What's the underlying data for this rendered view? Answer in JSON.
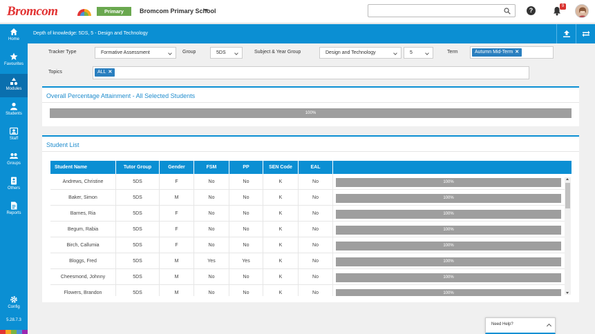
{
  "app": {
    "logo_text": "Bromcom",
    "edition_badge": "Primary",
    "school_name": "Bromcom Primary School",
    "notification_count": "9",
    "version": "5.28.7.3"
  },
  "colors": {
    "brand_blue": "#0b8fd3",
    "sidebar_active": "#0a6fae",
    "badge_green": "#6aa84f",
    "bar_gray": "#9e9e9e"
  },
  "sidebar": {
    "items": [
      {
        "label": "Home",
        "icon": "home-icon"
      },
      {
        "label": "Favourites",
        "icon": "star-icon"
      },
      {
        "label": "Modules",
        "icon": "modules-icon"
      },
      {
        "label": "Students",
        "icon": "student-icon"
      },
      {
        "label": "Staff",
        "icon": "staff-icon"
      },
      {
        "label": "Groups",
        "icon": "groups-icon"
      },
      {
        "label": "Others",
        "icon": "others-icon"
      },
      {
        "label": "Reports",
        "icon": "reports-icon"
      }
    ],
    "config_label": "Config"
  },
  "header": {
    "title": "Depth of knowledge: 5DS, 5 - Design and Technology"
  },
  "filters": {
    "tracker_type_label": "Tracker Type",
    "tracker_type_value": "Formative Assessment",
    "group_label": "Group",
    "group_value": "5DS",
    "subject_year_label": "Subject & Year Group",
    "subject_value": "Design and Technology",
    "year_value": "5",
    "term_label": "Term",
    "term_tag": "Autumn Mid-Term",
    "topics_label": "Topics",
    "topics_tag": "ALL"
  },
  "overall": {
    "title": "Overall Percentage Attainment - All Selected Students",
    "percent": 100,
    "percent_label": "100%"
  },
  "student_list": {
    "title": "Student List",
    "columns": [
      "Student Name",
      "Tutor Group",
      "Gender",
      "FSM",
      "PP",
      "SEN Code",
      "EAL"
    ],
    "rows": [
      {
        "name": "Andrews, Christine",
        "tutor": "5DS",
        "gender": "F",
        "fsm": "No",
        "pp": "No",
        "sen": "K",
        "eal": "No",
        "pct": "100%"
      },
      {
        "name": "Baker, Simon",
        "tutor": "5DS",
        "gender": "M",
        "fsm": "No",
        "pp": "No",
        "sen": "K",
        "eal": "No",
        "pct": "100%"
      },
      {
        "name": "Barnes, Ria",
        "tutor": "5DS",
        "gender": "F",
        "fsm": "No",
        "pp": "No",
        "sen": "K",
        "eal": "No",
        "pct": "100%"
      },
      {
        "name": "Begum, Rabia",
        "tutor": "5DS",
        "gender": "F",
        "fsm": "No",
        "pp": "No",
        "sen": "K",
        "eal": "No",
        "pct": "100%"
      },
      {
        "name": "Birch, Callumia",
        "tutor": "5DS",
        "gender": "F",
        "fsm": "No",
        "pp": "No",
        "sen": "K",
        "eal": "No",
        "pct": "100%"
      },
      {
        "name": "Bloggs, Fred",
        "tutor": "5DS",
        "gender": "M",
        "fsm": "Yes",
        "pp": "Yes",
        "sen": "K",
        "eal": "No",
        "pct": "100%"
      },
      {
        "name": "Cheesmond, Johnny",
        "tutor": "5DS",
        "gender": "M",
        "fsm": "No",
        "pp": "No",
        "sen": "K",
        "eal": "No",
        "pct": "100%"
      },
      {
        "name": "Flowers, Brandon",
        "tutor": "5DS",
        "gender": "M",
        "fsm": "No",
        "pp": "No",
        "sen": "K",
        "eal": "No",
        "pct": "100%"
      }
    ]
  },
  "help_widget": {
    "label": "Need Help?"
  }
}
